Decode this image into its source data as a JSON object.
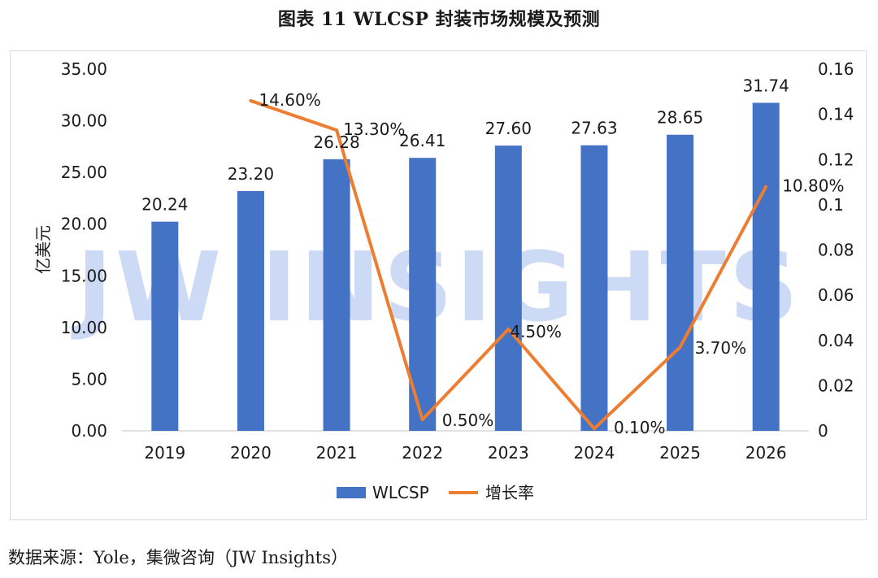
{
  "title": "图表 11 WLCSP  封装市场规模及预测",
  "source": "数据来源：Yole，集微咨询（JW Insights）",
  "watermark": "JW INSIGHTS",
  "colors": {
    "bar": "#4472c4",
    "line": "#ed7d31",
    "frame": "#d9d9d9",
    "watermark": "#c8d6f5"
  },
  "chart_data": {
    "type": "bar",
    "categories": [
      "2019",
      "2020",
      "2021",
      "2022",
      "2023",
      "2024",
      "2025",
      "2026"
    ],
    "ylabel": "亿美元",
    "ylim": [
      0,
      35
    ],
    "y_ticks": [
      "0.00",
      "5.00",
      "10.00",
      "15.00",
      "20.00",
      "25.00",
      "30.00",
      "35.00"
    ],
    "y2lim": [
      0,
      0.16
    ],
    "y2_ticks": [
      "0",
      "0.02",
      "0.04",
      "0.06",
      "0.08",
      "0.1",
      "0.12",
      "0.14",
      "0.16"
    ],
    "legend_position": "bottom",
    "grid": false,
    "series": [
      {
        "name": "WLCSP",
        "type": "bar",
        "axis": "left",
        "values": [
          20.24,
          23.2,
          26.28,
          26.41,
          27.6,
          27.63,
          28.65,
          31.74
        ],
        "labels": [
          "20.24",
          "23.20",
          "26.28",
          "26.41",
          "27.60",
          "27.63",
          "28.65",
          "31.74"
        ]
      },
      {
        "name": "增长率",
        "type": "line",
        "axis": "right",
        "values": [
          null,
          0.146,
          0.133,
          0.005,
          0.045,
          0.001,
          0.037,
          0.108
        ],
        "labels": [
          null,
          "14.60%",
          "13.30%",
          "0.50%",
          "4.50%",
          "0.10%",
          "3.70%",
          "10.80%"
        ]
      }
    ]
  }
}
